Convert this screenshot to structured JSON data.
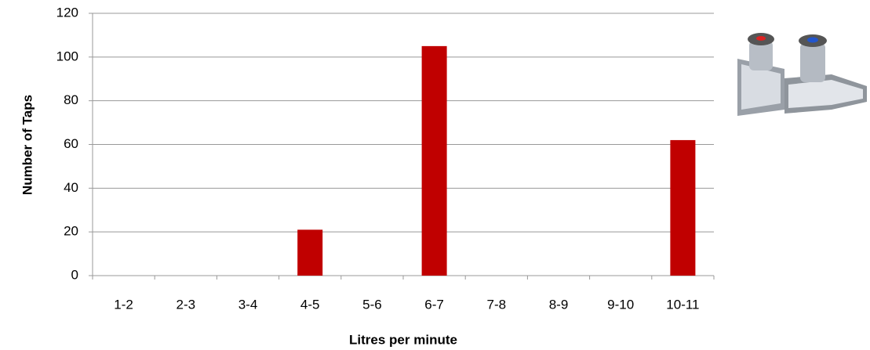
{
  "chart_data": {
    "type": "bar",
    "x_label": "Litres per minute",
    "y_label": "Number of Taps",
    "categories": [
      "1-2",
      "2-3",
      "3-4",
      "4-5",
      "5-6",
      "6-7",
      "7-8",
      "8-9",
      "9-10",
      "10-11"
    ],
    "values": [
      0,
      0,
      0,
      21,
      0,
      105,
      0,
      0,
      0,
      62
    ],
    "color": "#c00000",
    "ylim": [
      0,
      120
    ],
    "yticks": [
      0,
      20,
      40,
      60,
      80,
      100,
      120
    ],
    "grid": true
  }
}
